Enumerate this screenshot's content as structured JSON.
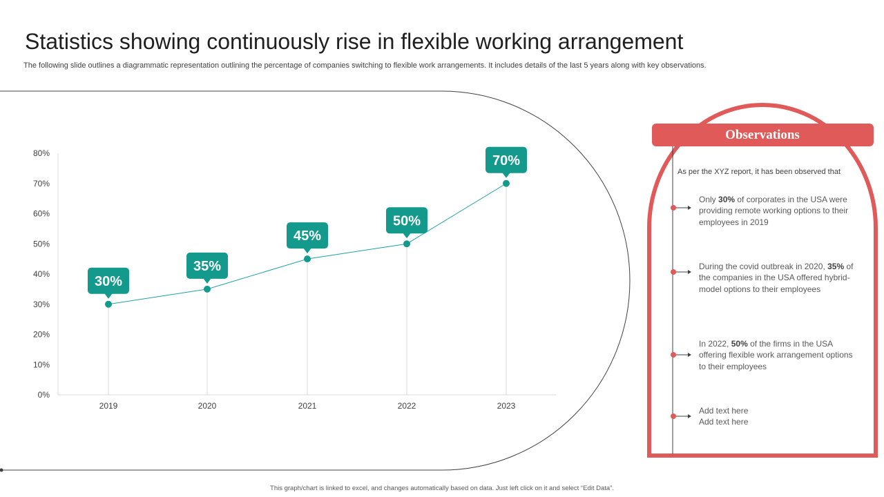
{
  "title": "Statistics showing continuously rise in flexible working arrangement",
  "subtitle": "The following slide outlines a diagrammatic representation outlining the percentage of companies switching to flexible work arrangements. It includes details of the last 5 years along with key observations.",
  "colors": {
    "accent": "#139a8c",
    "observation_red": "#e05a5a",
    "line": "#1e9fa6"
  },
  "chart_data": {
    "type": "line",
    "title": "",
    "xlabel": "",
    "ylabel": "",
    "categories": [
      "2019",
      "2020",
      "2021",
      "2022",
      "2023"
    ],
    "series": [
      {
        "values": [
          30,
          35,
          45,
          50,
          70
        ]
      }
    ],
    "data_labels": [
      "30%",
      "35%",
      "45%",
      "50%",
      "70%"
    ],
    "y_ticks": [
      0,
      10,
      20,
      30,
      40,
      50,
      60,
      70,
      80
    ],
    "y_tick_labels": [
      "0%",
      "10%",
      "20%",
      "30%",
      "40%",
      "50%",
      "60%",
      "70%",
      "80%"
    ],
    "ylim": [
      0,
      80
    ],
    "grid": false,
    "drop_lines": true
  },
  "observations": {
    "heading": "Observations",
    "intro": "As per the XYZ  report, it has been observed that",
    "items": [
      {
        "pre": "Only ",
        "bold": "30%",
        "post": " of corporates in the USA were providing  remote working options to their employees in 2019"
      },
      {
        "pre": "During the covid outbreak in 2020, ",
        "bold": "35%",
        "post": " of the companies in the USA offered  hybrid-model options to their employees"
      },
      {
        "pre": "In 2022, ",
        "bold": "50%",
        "post": " of the firms in the USA offering  flexible work arrangement options to their employees"
      },
      {
        "pre": "Add text here",
        "bold": "",
        "post": "",
        "line2": "Add text here"
      }
    ]
  },
  "footer": "This graph/chart is linked to excel, and changes automatically based on data. Just left click on it and select “Edit Data”."
}
